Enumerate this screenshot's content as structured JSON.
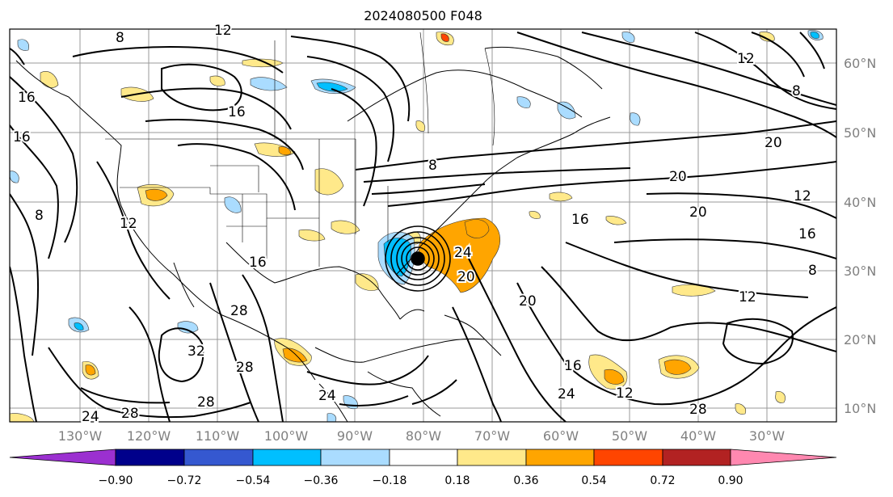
{
  "title": "2024080500 F048",
  "lat_labels": [
    "60°N",
    "50°N",
    "40°N",
    "30°N",
    "20°N",
    "10°N"
  ],
  "lon_labels": [
    "130°W",
    "120°W",
    "110°W",
    "100°W",
    "90°W",
    "80°W",
    "70°W",
    "60°W",
    "50°W",
    "40°W",
    "30°W"
  ],
  "colorbar": {
    "ticks": [
      "−0.90",
      "−0.72",
      "−0.54",
      "−0.36",
      "−0.18",
      "0.18",
      "0.36",
      "0.54",
      "0.72",
      "0.90"
    ],
    "colors": [
      "#9b30d0",
      "#00008b",
      "#3558d0",
      "#00bfff",
      "#aadcff",
      "#ffffff",
      "#ffe98a",
      "#ffa500",
      "#ff4500",
      "#b22222",
      "#ff88b0"
    ]
  },
  "contour_labels": [
    {
      "text": "16"
    },
    {
      "text": "16"
    },
    {
      "text": "16"
    },
    {
      "text": "8"
    },
    {
      "text": "12"
    },
    {
      "text": "12"
    },
    {
      "text": "8"
    },
    {
      "text": "20"
    },
    {
      "text": "20"
    },
    {
      "text": "20"
    },
    {
      "text": "12"
    },
    {
      "text": "16"
    },
    {
      "text": "16"
    },
    {
      "text": "8"
    },
    {
      "text": "12"
    },
    {
      "text": "16"
    },
    {
      "text": "20"
    },
    {
      "text": "24"
    },
    {
      "text": "20"
    },
    {
      "text": "28"
    },
    {
      "text": "32"
    },
    {
      "text": "28"
    },
    {
      "text": "24"
    },
    {
      "text": "28"
    },
    {
      "text": "24"
    },
    {
      "text": "28"
    },
    {
      "text": "28"
    },
    {
      "text": "12"
    },
    {
      "text": "24"
    },
    {
      "text": "8"
    },
    {
      "text": "16"
    },
    {
      "text": "8"
    },
    {
      "text": "12"
    }
  ]
}
